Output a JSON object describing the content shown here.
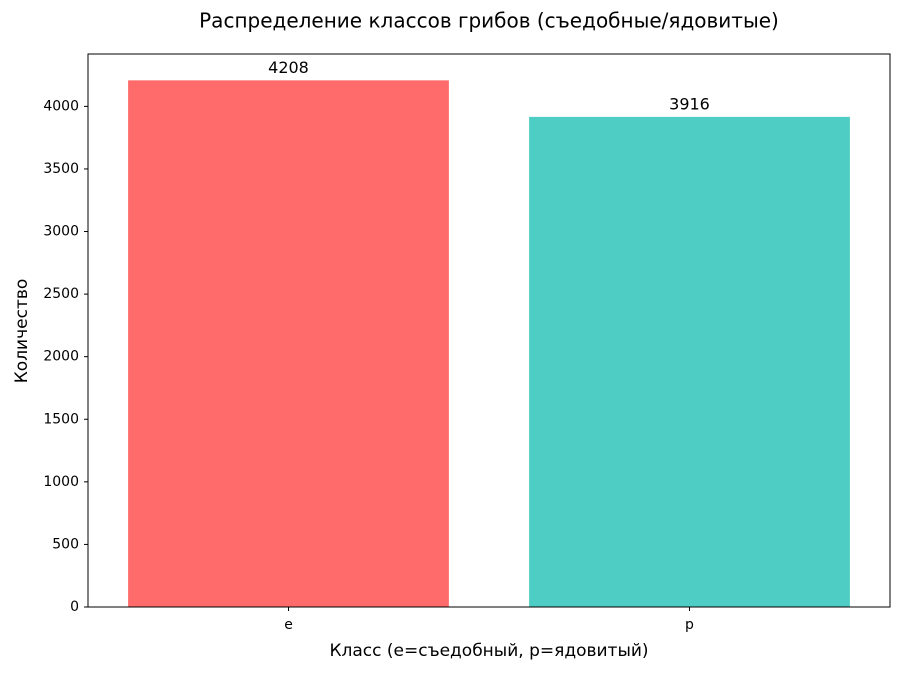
{
  "chart_data": {
    "type": "bar",
    "title": "Распределение классов грибов (съедобные/ядовитые)",
    "x_label": "Класс (e=съедобный, p=ядовитый)",
    "y_label": "Количество",
    "categories": [
      "e",
      "p"
    ],
    "values": [
      4208,
      3916
    ],
    "colors": [
      "#ff6b6b",
      "#4ecdc4"
    ],
    "ylim": [
      0,
      4418.4
    ],
    "yticks": [
      0,
      500,
      1000,
      1500,
      2000,
      2500,
      3000,
      3500,
      4000
    ],
    "grid": false
  }
}
